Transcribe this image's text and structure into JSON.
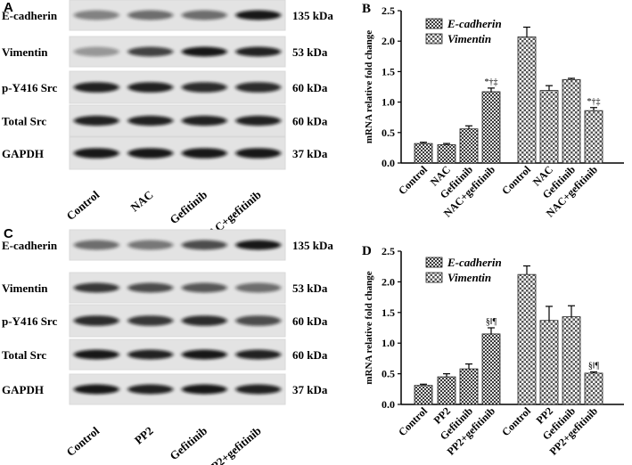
{
  "figure": {
    "panels": [
      {
        "letter": "A",
        "rows": [
          {
            "protein": "E-cadherin",
            "size": "135 kDa"
          },
          {
            "protein": "Vimentin",
            "size": "53 kDa"
          },
          {
            "protein": "p-Y416 Src",
            "size": "60 kDa"
          },
          {
            "protein": "Total Src",
            "size": "60 kDa"
          },
          {
            "protein": "GAPDH",
            "size": "37 kDa"
          }
        ],
        "lanes": [
          "Control",
          "NAC",
          "Gefitinib",
          "NAC+gefitinib"
        ]
      },
      {
        "letter": "C",
        "rows": [
          {
            "protein": "E-cadherin",
            "size": "135 kDa"
          },
          {
            "protein": "Vimentin",
            "size": "53 kDa"
          },
          {
            "protein": "p-Y416 Src",
            "size": "60 kDa"
          },
          {
            "protein": "Total Src",
            "size": "60 kDa"
          },
          {
            "protein": "GAPDH",
            "size": "37 kDa"
          }
        ],
        "lanes": [
          "Control",
          "PP2",
          "Gefitinib",
          "PP2+gefitinib"
        ]
      }
    ]
  },
  "chart_data": [
    {
      "letter": "B",
      "type": "bar",
      "ylabel": "mRNA relative fold change",
      "ylim": [
        0,
        2.5
      ],
      "yticks": [
        "0.0",
        "0.5",
        "1.0",
        "1.5",
        "2.0",
        "2.5"
      ],
      "legend_position": "top-left",
      "series": [
        {
          "name": "E-cadherin",
          "categories": [
            "Control",
            "NAC",
            "Gefitinib",
            "NAC+gefitinib"
          ],
          "values": [
            0.32,
            0.3,
            0.56,
            1.17
          ],
          "errors": [
            0.02,
            0.02,
            0.05,
            0.06
          ],
          "annotations": [
            "",
            "",
            "",
            "*†‡"
          ]
        },
        {
          "name": "Vimentin",
          "categories": [
            "Control",
            "NAC",
            "Gefitinib",
            "NAC+gefitinib"
          ],
          "values": [
            2.07,
            1.19,
            1.37,
            0.86
          ],
          "errors": [
            0.16,
            0.08,
            0.02,
            0.05
          ],
          "annotations": [
            "",
            "",
            "",
            "*†‡"
          ]
        }
      ]
    },
    {
      "letter": "D",
      "type": "bar",
      "ylabel": "mRNA relative fold change",
      "ylim": [
        0,
        2.5
      ],
      "yticks": [
        "0.0",
        "0.5",
        "1.0",
        "1.5",
        "2.0",
        "2.5"
      ],
      "legend_position": "top-left",
      "series": [
        {
          "name": "E-cadherin",
          "categories": [
            "Control",
            "PP2",
            "Gefitinib",
            "PP2+gefitinib"
          ],
          "values": [
            0.31,
            0.45,
            0.58,
            1.15
          ],
          "errors": [
            0.02,
            0.05,
            0.08,
            0.1
          ],
          "annotations": [
            "",
            "",
            "",
            "§‖¶"
          ]
        },
        {
          "name": "Vimentin",
          "categories": [
            "Control",
            "PP2",
            "Gefitinib",
            "PP2+gefitinib"
          ],
          "values": [
            2.12,
            1.37,
            1.43,
            0.51
          ],
          "errors": [
            0.14,
            0.23,
            0.18,
            0.02
          ],
          "annotations": [
            "",
            "",
            "",
            "§‖¶"
          ]
        }
      ]
    }
  ]
}
